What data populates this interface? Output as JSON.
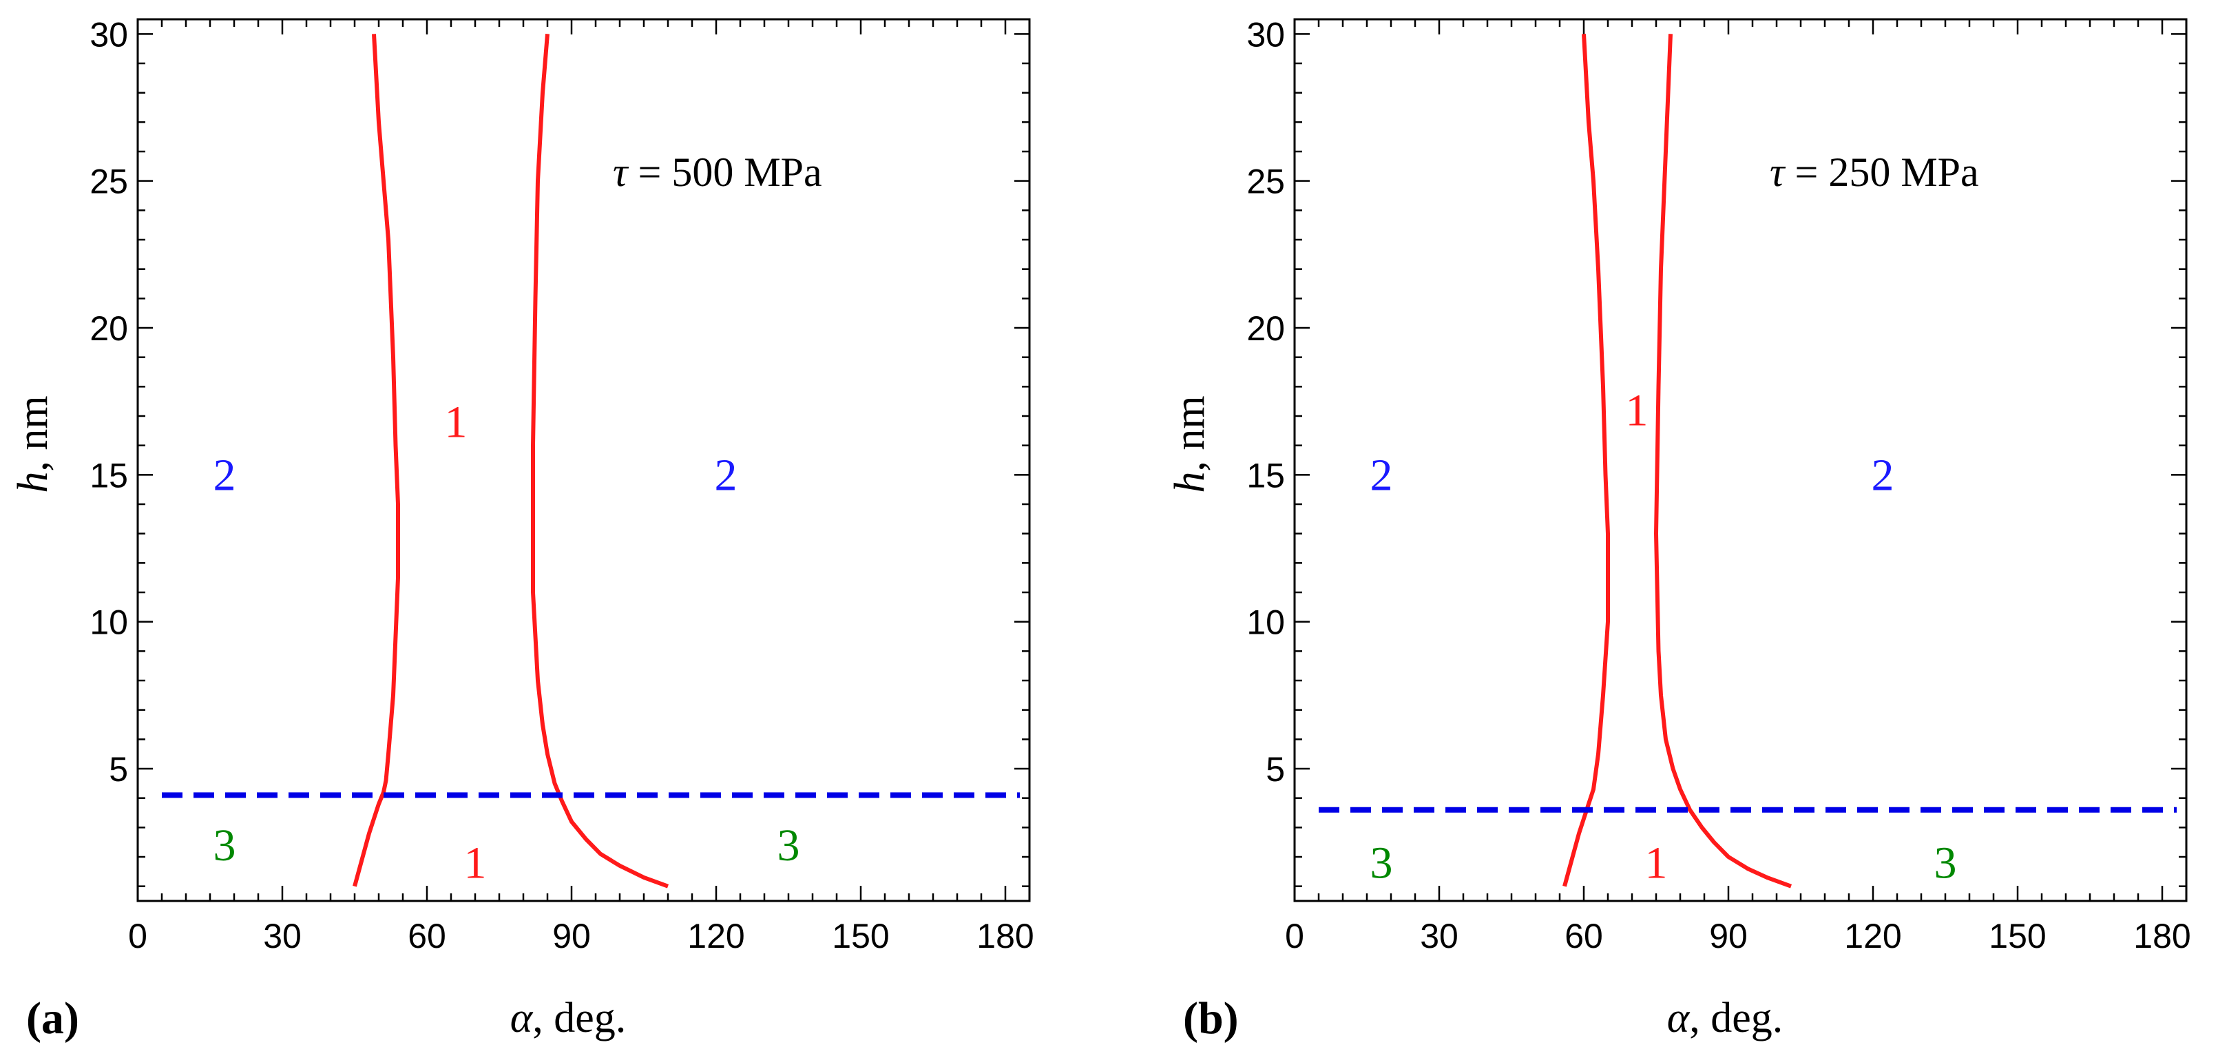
{
  "colors": {
    "boundary": "#ff1a1a",
    "dashed": "#0000e6",
    "region_1": "#ff1a1a",
    "region_2": "#1a1aff",
    "region_3": "#008800",
    "axes": "#000000"
  },
  "chart_data": [
    {
      "type": "line",
      "panel_label": "(a)",
      "annotation": {
        "symbol": "τ",
        "text": " = 500 MPa"
      },
      "xlabel": {
        "symbol": "α",
        "text": ", deg."
      },
      "ylabel": {
        "symbol": "h",
        "text": ", nm"
      },
      "xlim": [
        0,
        185
      ],
      "ylim": [
        0.5,
        30.5
      ],
      "xticks": [
        0,
        30,
        60,
        90,
        120,
        150,
        180
      ],
      "yticks": [
        5,
        10,
        15,
        20,
        25,
        30
      ],
      "xtick_labels": [
        "0",
        "30",
        "60",
        "90",
        "120",
        "150",
        "180"
      ],
      "ytick_labels": [
        "5",
        "10",
        "15",
        "20",
        "25",
        "30"
      ],
      "series": [
        {
          "name": "left boundary",
          "style": "solid",
          "x": [
            45,
            46,
            47,
            48,
            49,
            50,
            51,
            51.5,
            52,
            53,
            54,
            54,
            53.5,
            53,
            52,
            51,
            50,
            49
          ],
          "y": [
            1,
            1.6,
            2.2,
            2.8,
            3.3,
            3.8,
            4.2,
            4.6,
            5.5,
            7.5,
            11.5,
            14,
            16,
            19,
            23,
            25,
            27,
            30
          ]
        },
        {
          "name": "right boundary",
          "style": "solid",
          "x": [
            110,
            105,
            100,
            96,
            93,
            90,
            88,
            86.5,
            85,
            84,
            83,
            82.5,
            82,
            82,
            82.5,
            83,
            84,
            85
          ],
          "y": [
            1,
            1.3,
            1.7,
            2.1,
            2.6,
            3.2,
            3.9,
            4.5,
            5.5,
            6.5,
            8,
            9.5,
            11,
            16,
            21,
            25,
            28,
            30
          ]
        },
        {
          "name": "region boundary h",
          "style": "dashed",
          "x": [
            5,
            183
          ],
          "y": [
            4.1,
            4.1
          ]
        }
      ],
      "region_labels": [
        {
          "text": "2",
          "region": 2,
          "x": 18,
          "y": 15
        },
        {
          "text": "1",
          "region": 1,
          "x": 66,
          "y": 16.8
        },
        {
          "text": "2",
          "region": 2,
          "x": 122,
          "y": 15
        },
        {
          "text": "3",
          "region": 3,
          "x": 18,
          "y": 2.4
        },
        {
          "text": "1",
          "region": 1,
          "x": 70,
          "y": 1.8
        },
        {
          "text": "3",
          "region": 3,
          "x": 135,
          "y": 2.4
        }
      ]
    },
    {
      "type": "line",
      "panel_label": "(b)",
      "annotation": {
        "symbol": "τ",
        "text": " = 250 MPa"
      },
      "xlabel": {
        "symbol": "α",
        "text": ", deg."
      },
      "ylabel": {
        "symbol": "h",
        "text": ", nm"
      },
      "xlim": [
        0,
        185
      ],
      "ylim": [
        0.5,
        30.5
      ],
      "xticks": [
        0,
        30,
        60,
        90,
        120,
        150,
        180
      ],
      "yticks": [
        5,
        10,
        15,
        20,
        25,
        30
      ],
      "xtick_labels": [
        "0",
        "30",
        "60",
        "90",
        "120",
        "150",
        "180"
      ],
      "ytick_labels": [
        "5",
        "10",
        "15",
        "20",
        "25",
        "30"
      ],
      "series": [
        {
          "name": "left boundary",
          "style": "solid",
          "x": [
            56,
            57,
            58,
            59,
            60,
            61,
            62,
            63,
            64,
            65,
            65,
            64.5,
            64,
            63,
            62,
            61,
            60
          ],
          "y": [
            1,
            1.6,
            2.2,
            2.8,
            3.3,
            3.8,
            4.3,
            5.5,
            7.5,
            10,
            13,
            15,
            18,
            22,
            25,
            27,
            30
          ]
        },
        {
          "name": "right boundary",
          "style": "solid",
          "x": [
            103,
            98,
            94,
            90,
            87,
            84.5,
            82,
            80,
            78.5,
            77,
            76,
            75.5,
            75,
            75.5,
            76,
            77,
            78
          ],
          "y": [
            1,
            1.3,
            1.6,
            2,
            2.5,
            3,
            3.6,
            4.3,
            5,
            6,
            7.5,
            9,
            13,
            18,
            22,
            26,
            30
          ]
        },
        {
          "name": "region boundary h",
          "style": "dashed",
          "x": [
            5,
            183
          ],
          "y": [
            3.6,
            3.6
          ]
        }
      ],
      "region_labels": [
        {
          "text": "2",
          "region": 2,
          "x": 18,
          "y": 15
        },
        {
          "text": "1",
          "region": 1,
          "x": 71,
          "y": 17.2
        },
        {
          "text": "2",
          "region": 2,
          "x": 122,
          "y": 15
        },
        {
          "text": "3",
          "region": 3,
          "x": 18,
          "y": 1.8
        },
        {
          "text": "1",
          "region": 1,
          "x": 75,
          "y": 1.8
        },
        {
          "text": "3",
          "region": 3,
          "x": 135,
          "y": 1.8
        }
      ]
    }
  ]
}
